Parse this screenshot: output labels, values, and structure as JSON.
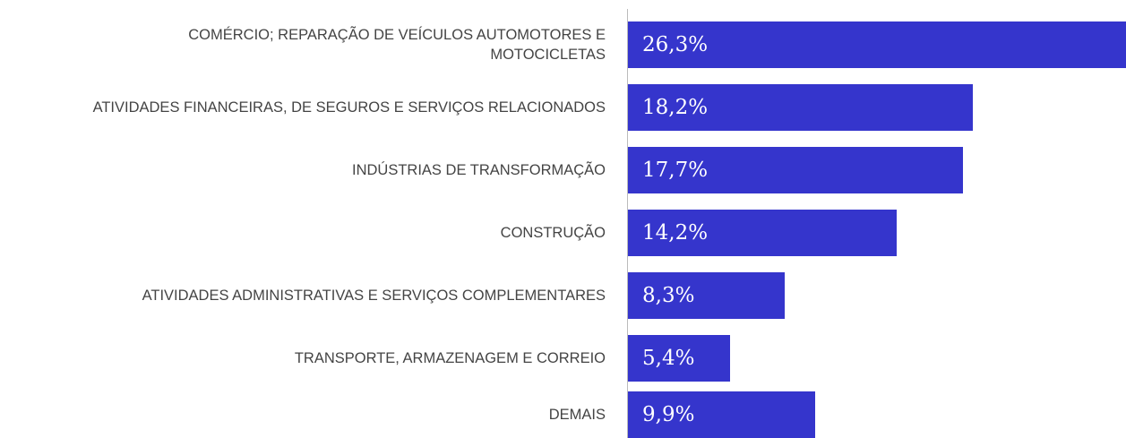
{
  "chart_data": {
    "type": "bar",
    "orientation": "horizontal",
    "categories": [
      "COMÉRCIO; REPARAÇÃO DE VEÍCULOS AUTOMOTORES E MOTOCICLETAS",
      "ATIVIDADES FINANCEIRAS, DE SEGUROS E SERVIÇOS RELACIONADOS",
      "INDÚSTRIAS DE TRANSFORMAÇÃO",
      "CONSTRUÇÃO",
      "ATIVIDADES ADMINISTRATIVAS E SERVIÇOS COMPLEMENTARES",
      "TRANSPORTE, ARMAZENAGEM E CORREIO",
      "DEMAIS"
    ],
    "values": [
      26.3,
      18.2,
      17.7,
      14.2,
      8.3,
      5.4,
      9.9
    ],
    "value_labels": [
      "26,3%",
      "18,2%",
      "17,7%",
      "14,2%",
      "8,3%",
      "5,4%",
      "9,9%"
    ],
    "color": "#3535cc"
  }
}
